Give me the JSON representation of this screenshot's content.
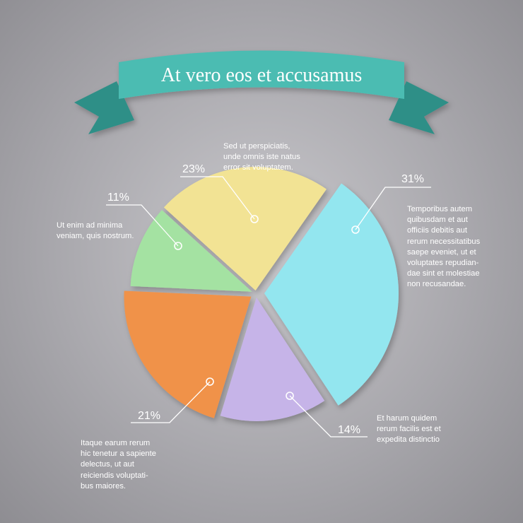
{
  "title": "At vero eos et accusamus",
  "colors": {
    "ribbon": "#4cbcb2",
    "ribbon_dark": "#2f8f87",
    "slice_blue": "#93e6ef",
    "slice_purple": "#c6b4e8",
    "slice_orange": "#f0924a",
    "slice_green": "#a4e2a2",
    "slice_yellow": "#f2e394"
  },
  "chart_data": {
    "type": "pie",
    "title": "At vero eos et accusamus",
    "slices": [
      {
        "label": "31%",
        "value": 31,
        "color": "#93e6ef",
        "text": "Temporibus autem\nquibusdam et aut\nofficiis debitis aut\nrerum necessitatibus\nsaepe eveniet, ut et\nvoluptates repudian-\ndae sint et molestiae\nnon recusandae."
      },
      {
        "label": "14%",
        "value": 14,
        "color": "#c6b4e8",
        "text": "Et harum quidem\nrerum facilis est et\nexpedita distinctio"
      },
      {
        "label": "21%",
        "value": 21,
        "color": "#f0924a",
        "text": "Itaque earum rerum\nhic tenetur a sapiente\ndelectus, ut aut\nreiciendis voluptati-\nbus maiores."
      },
      {
        "label": "11%",
        "value": 11,
        "color": "#a4e2a2",
        "text": "Ut enim ad minima\nveniam, quis nostrum."
      },
      {
        "label": "23%",
        "value": 23,
        "color": "#f2e394",
        "text": "Sed ut perspiciatis,\nunde omnis iste natus\nerror sit voluptatem."
      }
    ]
  }
}
